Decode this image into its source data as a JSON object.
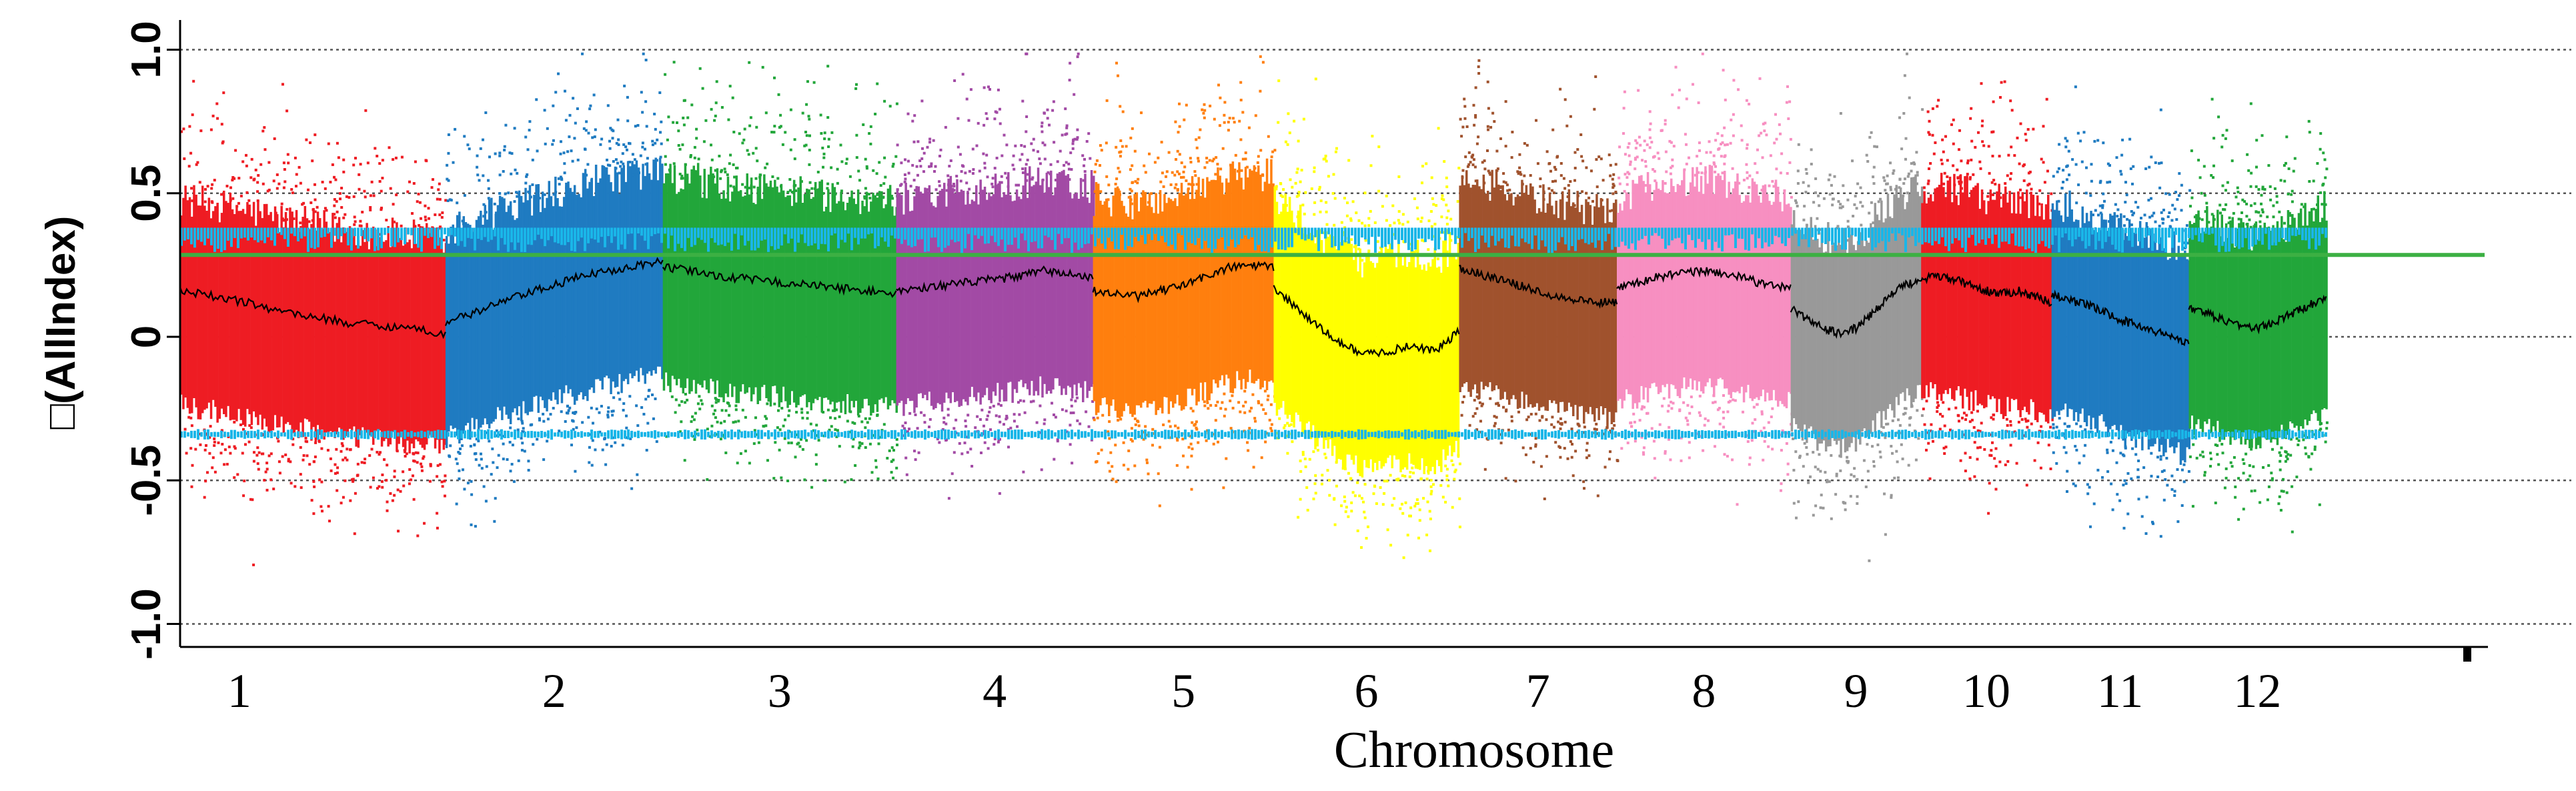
{
  "chart_data": {
    "type": "scatter",
    "title": "",
    "xlabel": "Chromosome",
    "ylabel": "□(AllIndex)",
    "ylim": [
      -1.08,
      1.08
    ],
    "yticks": [
      {
        "value": 1.0,
        "label": "1.0"
      },
      {
        "value": 0.5,
        "label": "0.5"
      },
      {
        "value": 0.0,
        "label": "0"
      },
      {
        "value": -0.5,
        "label": "-0.5"
      },
      {
        "value": -1.0,
        "label": "-1.0"
      }
    ],
    "reference_lines": [
      1.0,
      0.5,
      0.0,
      -0.5,
      -1.0
    ],
    "threshold_line": {
      "value": 0.285,
      "color": "#3cb043"
    },
    "significance_band": {
      "upper": 0.36,
      "lower": -0.34,
      "color": "#1ab6e8"
    },
    "chromosomes": [
      {
        "label": "1",
        "start": 0.0,
        "end": 0.116,
        "color": "#ee1c23",
        "trend": [
          0.16,
          0.14,
          0.12,
          0.09,
          0.07,
          0.05,
          0.04,
          0.03,
          0.01
        ]
      },
      {
        "label": "2",
        "start": 0.116,
        "end": 0.211,
        "color": "#1f7bc1",
        "trend": [
          0.05,
          0.08,
          0.12,
          0.15,
          0.18,
          0.21,
          0.23,
          0.25,
          0.26
        ]
      },
      {
        "label": "3",
        "start": 0.211,
        "end": 0.313,
        "color": "#22a63a",
        "trend": [
          0.24,
          0.23,
          0.21,
          0.2,
          0.19,
          0.18,
          0.17,
          0.16,
          0.15
        ]
      },
      {
        "label": "4",
        "start": 0.313,
        "end": 0.399,
        "color": "#a24aa5",
        "trend": [
          0.16,
          0.17,
          0.18,
          0.19,
          0.2,
          0.21,
          0.23,
          0.22,
          0.2
        ]
      },
      {
        "label": "5",
        "start": 0.399,
        "end": 0.478,
        "color": "#ff7f0e",
        "trend": [
          0.16,
          0.15,
          0.14,
          0.16,
          0.18,
          0.21,
          0.24,
          0.25,
          0.24
        ]
      },
      {
        "label": "6",
        "start": 0.478,
        "end": 0.559,
        "color": "#ffff00",
        "trend": [
          0.17,
          0.1,
          0.03,
          -0.03,
          -0.06,
          -0.05,
          -0.03,
          -0.05,
          0.02
        ]
      },
      {
        "label": "7",
        "start": 0.559,
        "end": 0.628,
        "color": "#a0522d",
        "trend": [
          0.24,
          0.22,
          0.2,
          0.18,
          0.16,
          0.14,
          0.13,
          0.12,
          0.12
        ]
      },
      {
        "label": "8",
        "start": 0.628,
        "end": 0.704,
        "color": "#f78fc1",
        "trend": [
          0.17,
          0.19,
          0.21,
          0.22,
          0.23,
          0.22,
          0.2,
          0.18,
          0.17
        ]
      },
      {
        "label": "9",
        "start": 0.704,
        "end": 0.761,
        "color": "#999999",
        "trend": [
          0.1,
          0.06,
          0.03,
          0.01,
          0.03,
          0.08,
          0.14,
          0.18,
          0.2
        ]
      },
      {
        "label": "10",
        "start": 0.761,
        "end": 0.818,
        "color": "#ee1c23",
        "trend": [
          0.2,
          0.21,
          0.2,
          0.18,
          0.16,
          0.15,
          0.16,
          0.14,
          0.12
        ]
      },
      {
        "label": "11",
        "start": 0.818,
        "end": 0.878,
        "color": "#1f7bc1",
        "trend": [
          0.15,
          0.13,
          0.11,
          0.09,
          0.06,
          0.04,
          0.02,
          0.0,
          -0.02
        ]
      },
      {
        "label": "12",
        "start": 0.878,
        "end": 0.938,
        "color": "#22a63a",
        "trend": [
          0.1,
          0.08,
          0.06,
          0.04,
          0.03,
          0.05,
          0.08,
          0.11,
          0.14
        ]
      }
    ]
  }
}
